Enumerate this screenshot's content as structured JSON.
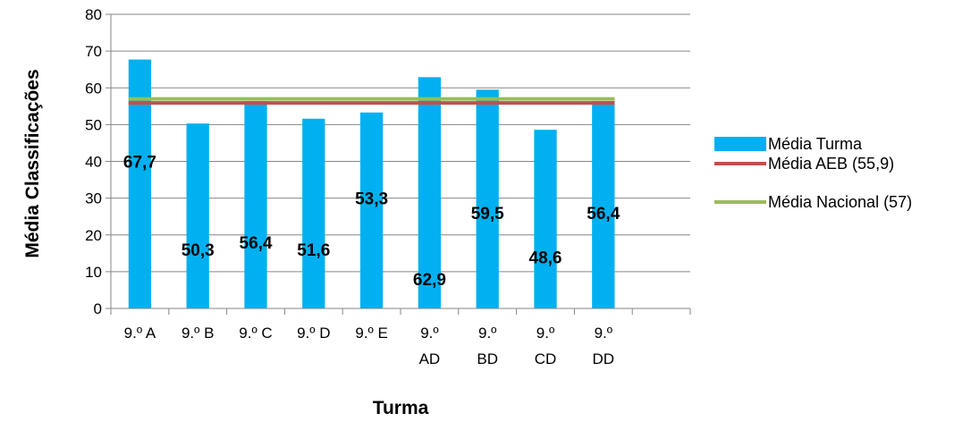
{
  "chart_data": {
    "type": "bar",
    "categories": [
      [
        "9.º A"
      ],
      [
        "9.º B"
      ],
      [
        "9.º C"
      ],
      [
        "9.º D"
      ],
      [
        "9.º E"
      ],
      [
        "9.º",
        "AD"
      ],
      [
        "9.º",
        "BD"
      ],
      [
        "9.º",
        "CD"
      ],
      [
        "9.º",
        "DD"
      ]
    ],
    "series": [
      {
        "name": "Média Turma",
        "values": [
          67.7,
          50.3,
          56.4,
          51.6,
          53.3,
          62.9,
          59.5,
          48.6,
          56.4
        ],
        "data_labels": [
          "67,7",
          "50,3",
          "56,4",
          "51,6",
          "53,3",
          "62,9",
          "59,5",
          "48,6",
          "56,4"
        ],
        "label_values": [
          40,
          16,
          18,
          16,
          30,
          8,
          26,
          14,
          26
        ],
        "color": "#00B0F0"
      }
    ],
    "reference_lines": [
      {
        "name": "Média AEB (55,9)",
        "value": 55.9,
        "color": "#C0504D"
      },
      {
        "name": "Média Nacional (57)",
        "value": 57,
        "color": "#9BBB59"
      }
    ],
    "xlabel": "Turma",
    "ylabel": "Média Classificações",
    "ylim": [
      0,
      80
    ],
    "yticks": [
      0,
      10,
      20,
      30,
      40,
      50,
      60,
      70,
      80
    ],
    "grid": true,
    "legend": "right",
    "axis_color": "#868686"
  }
}
